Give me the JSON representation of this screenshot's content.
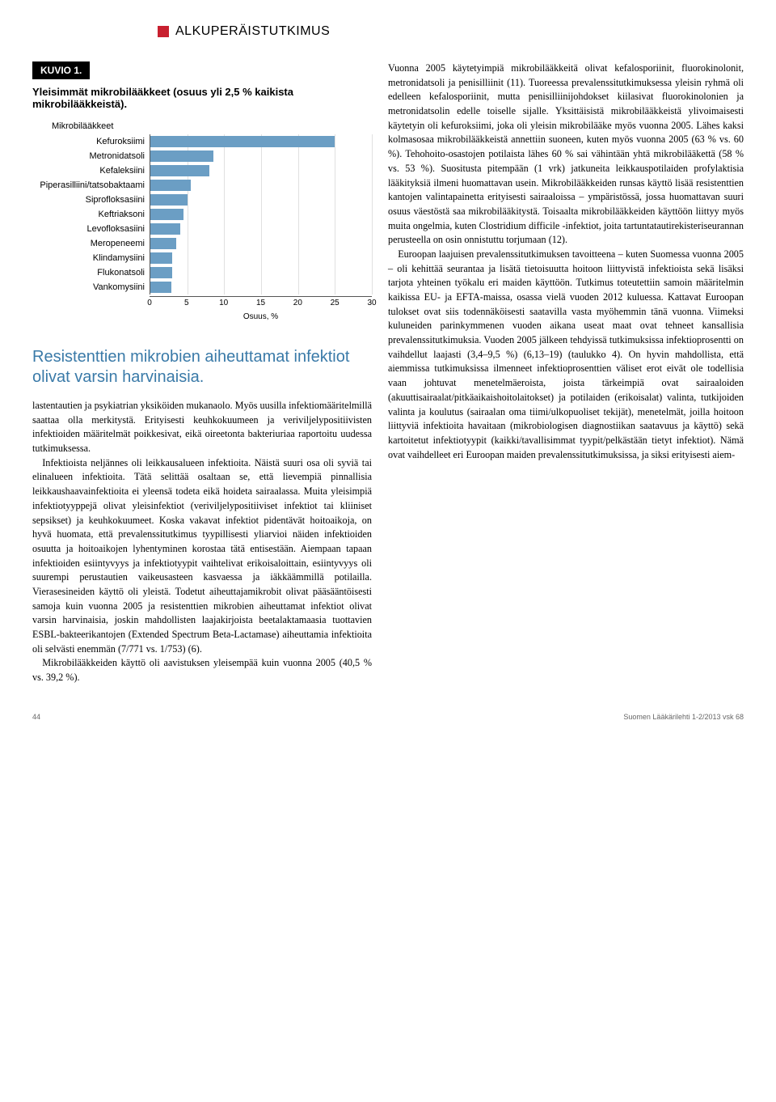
{
  "header": {
    "category": "ALKUPERÄISTUTKIMUS"
  },
  "kuvio": {
    "label": "KUVIO 1.",
    "title": "Yleisimmät mikrobilääkkeet (osuus yli 2,5 % kaikista mikrobilääkkeistä).",
    "subheader": "Mikrobilääkkeet"
  },
  "chart": {
    "type": "bar",
    "bar_color": "#6b9ec4",
    "grid_color": "#e0e0e0",
    "axis_color": "#555555",
    "label_fontsize": 11,
    "xlim": [
      0,
      30
    ],
    "xtick_step": 5,
    "xticks": [
      0,
      5,
      10,
      15,
      20,
      25,
      30
    ],
    "xlabel": "Osuus, %",
    "categories": [
      "Kefuroksiimi",
      "Metronidatsoli",
      "Kefaleksiini",
      "Piperasilliini/tatsobaktaami",
      "Siprofloksasiini",
      "Keftriaksoni",
      "Levofloksasiini",
      "Meropeneemi",
      "Klindamysiini",
      "Flukonatsoli",
      "Vankomysiini"
    ],
    "values": [
      25,
      8.5,
      8,
      5.5,
      5,
      4.5,
      4,
      3.5,
      3,
      3,
      2.8
    ]
  },
  "pullquote": "Resistenttien mikrobien aiheuttamat infektiot olivat varsin harvinaisia.",
  "left_body": {
    "p1": "lastentautien ja psykiatrian yksiköiden mukanaolo. Myös uusilla infektiomääritelmillä saattaa olla merkitystä. Erityisesti keuhkokuumeen ja veriviljelypositiivisten infektioiden määritelmät poikkesivat, eikä oireetonta bakteriuriaa raportoitu uudessa tutkimuksessa.",
    "p2": "Infektioista neljännes oli leikkausalueen infektioita. Näistä suuri osa oli syviä tai elinalueen infektioita. Tätä selittää osaltaan se, että lievempiä pinnallisia leikkaushaavainfektioita ei yleensä todeta eikä hoideta sairaalassa. Muita yleisimpiä infektiotyyppejä olivat yleisinfektiot (veriviljelypositiiviset infektiot tai kliiniset sepsikset) ja keuhkokuumeet. Koska vakavat infektiot pidentävät hoitoaikoja, on hyvä huomata, että prevalenssitutkimus tyypillisesti yliarvioi näiden infektioiden osuutta ja hoitoaikojen lyhentyminen korostaa tätä entisestään. Aiempaan tapaan infektioiden esiintyvyys ja infektiotyypit vaihtelivat erikoisaloittain, esiintyvyys oli suurempi perustautien vaikeusasteen kasvaessa ja iäkkäämmillä potilailla. Vierasesineiden käyttö oli yleistä. Todetut aiheuttajamikrobit olivat pääsääntöisesti samoja kuin vuonna 2005 ja resistenttien mikrobien aiheuttamat infektiot olivat varsin harvinaisia, joskin mahdollisten laajakirjoista beetalaktamaasia tuottavien ESBL-bakteerikantojen (Extended Spectrum Beta-Lactamase) aiheuttamia infektioita oli selvästi enemmän (7/771 vs. 1/753) (6).",
    "p3": "Mikrobilääkkeiden käyttö oli aavistuksen yleisempää kuin vuonna 2005 (40,5 % vs. 39,2 %)."
  },
  "right_body": {
    "p1": "Vuonna 2005 käytetyimpiä mikrobilääkkeitä olivat kefalosporiinit, fluorokinolonit, metronidatsoli ja penisilliinit (11). Tuoreessa prevalenssitutkimuksessa yleisin ryhmä oli edelleen kefalosporiinit, mutta penisilliinijohdokset kiilasivat fluorokinolonien ja metronidatsolin edelle toiselle sijalle. Yksittäisistä mikrobilääkkeistä ylivoimaisesti käytetyin oli kefuroksiimi, joka oli yleisin mikrobilääke myös vuonna 2005. Lähes kaksi kolmasosaa mikrobilääkkeistä annettiin suoneen, kuten myös vuonna 2005 (63 % vs. 60 %). Tehohoito-osastojen potilaista lähes 60 % sai vähintään yhtä mikrobilääkettä (58 % vs. 53 %). Suositusta pitempään (1 vrk) jatkuneita leikkauspotilaiden profylaktisia lääkityksiä ilmeni huomattavan usein. Mikrobilääkkeiden runsas käyttö lisää resistenttien kantojen valintapainetta erityisesti sairaaloissa – ympäristössä, jossa huomattavan suuri osuus väestöstä saa mikrobilääkitystä. Toisaalta mikrobilääkkeiden käyttöön liittyy myös muita ongelmia, kuten Clostridium difficile -infektiot, joita tartuntatautirekisteriseurannan perusteella on osin onnistuttu torjumaan (12).",
    "p2": "Euroopan laajuisen prevalenssitutkimuksen tavoitteena – kuten Suomessa vuonna 2005 – oli kehittää seurantaa ja lisätä tietoisuutta hoitoon liittyvistä infektioista sekä lisäksi tarjota yhteinen työkalu eri maiden käyttöön. Tutkimus toteutettiin samoin määritelmin kaikissa EU- ja EFTA-maissa, osassa vielä vuoden 2012 kuluessa. Kattavat Euroopan tulokset ovat siis todennäköisesti saatavilla vasta myöhemmin tänä vuonna. Viimeksi kuluneiden parinkymmenen vuoden aikana useat maat ovat tehneet kansallisia prevalenssitutkimuksia. Vuoden 2005 jälkeen tehdyissä tutkimuksissa infektioprosentti on vaihdellut laajasti (3,4–9,5 %) (6,13–19) (taulukko 4). On hyvin mahdollista, että aiemmissa tutkimuksissa ilmenneet infektioprosenttien väliset erot eivät ole todellisia vaan johtuvat menetelmäeroista, joista tärkeimpiä ovat sairaaloiden (akuuttisairaalat/pitkäaikaishoitolaitokset) ja potilaiden (erikoisalat) valinta, tutkijoiden valinta ja koulutus (sairaalan oma tiimi/ulkopuoliset tekijät), menetelmät, joilla hoitoon liittyviä infektioita havaitaan (mikrobiologisen diagnostiikan saatavuus ja käyttö) sekä kartoitetut infektiotyypit (kaikki/tavallisimmat tyypit/pelkästään tietyt infektiot). Nämä ovat vaihdelleet eri Euroopan maiden prevalenssitutkimuksissa, ja siksi erityisesti aiem-"
  },
  "footer": {
    "page": "44",
    "journal": "Suomen Lääkärilehti 1-2/2013 vsk 68"
  }
}
